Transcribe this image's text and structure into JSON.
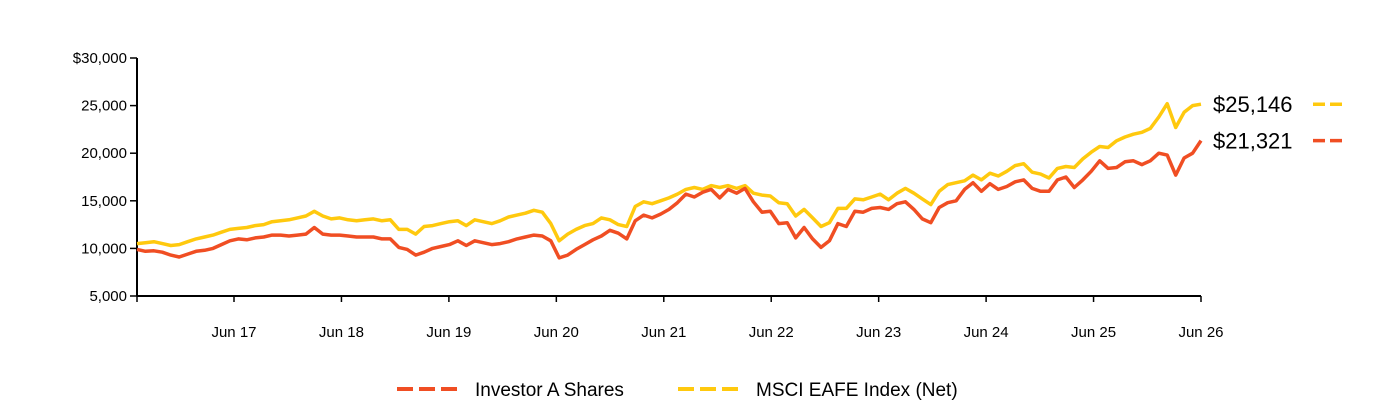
{
  "chart_data": {
    "type": "line",
    "title": "",
    "xlabel": "",
    "ylabel": "",
    "x_tick_labels": [
      "Jun 17",
      "Jun 18",
      "Jun 19",
      "Jun 20",
      "Jun 21",
      "Jun 22",
      "Jun 23",
      "Jun 24",
      "Jun 25",
      "Jun 26"
    ],
    "y_ticks": [
      5000,
      10000,
      15000,
      20000,
      25000,
      30000
    ],
    "y_tick_labels": [
      "5,000",
      "10,000",
      "15,000",
      "20,000",
      "25,000",
      "$30,000"
    ],
    "ylim": [
      5000,
      30000
    ],
    "grid": false,
    "legend_position": "bottom",
    "series": [
      {
        "name": "Investor A Shares",
        "color": "#F04E23",
        "end_label": "$21,321",
        "values": [
          9900,
          9700,
          9750,
          9600,
          9300,
          9100,
          9400,
          9700,
          9800,
          10000,
          10400,
          10800,
          11000,
          10900,
          11100,
          11200,
          11400,
          11400,
          11300,
          11400,
          11500,
          12200,
          11500,
          11400,
          11400,
          11300,
          11200,
          11200,
          11200,
          11000,
          11000,
          10100,
          9900,
          9300,
          9600,
          10000,
          10200,
          10400,
          10800,
          10300,
          10800,
          10600,
          10400,
          10500,
          10700,
          11000,
          11200,
          11400,
          11300,
          10800,
          9000,
          9300,
          9900,
          10400,
          10900,
          11300,
          11900,
          11600,
          11000,
          12900,
          13500,
          13200,
          13600,
          14100,
          14800,
          15700,
          15400,
          15900,
          16200,
          15300,
          16200,
          15800,
          16300,
          14900,
          13800,
          13900,
          12600,
          12700,
          11100,
          12200,
          11000,
          10100,
          10800,
          12600,
          12300,
          13900,
          13800,
          14200,
          14300,
          14100,
          14700,
          14900,
          14100,
          13100,
          12700,
          14300,
          14800,
          15000,
          16200,
          16900,
          16000,
          16800,
          16200,
          16500,
          17000,
          17200,
          16300,
          16000,
          16000,
          17200,
          17500,
          16400,
          17200,
          18100,
          19200,
          18400,
          18500,
          19100,
          19200,
          18800,
          19200,
          20000,
          19800,
          17700,
          19500,
          20000,
          21321
        ]
      },
      {
        "name": "MSCI EAFE Index (Net)",
        "color": "#FFC90E",
        "end_label": "$25,146",
        "values": [
          10500,
          10600,
          10700,
          10500,
          10300,
          10400,
          10700,
          11000,
          11200,
          11400,
          11700,
          12000,
          12100,
          12200,
          12400,
          12500,
          12800,
          12900,
          13000,
          13200,
          13400,
          13900,
          13400,
          13100,
          13200,
          13000,
          12900,
          13000,
          13100,
          12900,
          13000,
          12000,
          12000,
          11500,
          12300,
          12400,
          12600,
          12800,
          12900,
          12400,
          13000,
          12800,
          12600,
          12900,
          13300,
          13500,
          13700,
          14000,
          13800,
          12600,
          10800,
          11500,
          12000,
          12400,
          12600,
          13200,
          13000,
          12500,
          12300,
          14400,
          14900,
          14700,
          15000,
          15300,
          15700,
          16200,
          16400,
          16200,
          16600,
          16400,
          16600,
          16300,
          16600,
          15800,
          15600,
          15500,
          14800,
          14700,
          13400,
          14100,
          13200,
          12300,
          12700,
          14200,
          14200,
          15200,
          15100,
          15400,
          15700,
          15100,
          15800,
          16300,
          15800,
          15200,
          14600,
          16000,
          16700,
          16900,
          17100,
          17700,
          17200,
          17900,
          17600,
          18100,
          18700,
          18900,
          18000,
          17800,
          17400,
          18400,
          18600,
          18500,
          19400,
          20100,
          20700,
          20600,
          21300,
          21700,
          22000,
          22200,
          22600,
          23800,
          25200,
          22700,
          24300,
          25000,
          25146
        ]
      }
    ]
  }
}
